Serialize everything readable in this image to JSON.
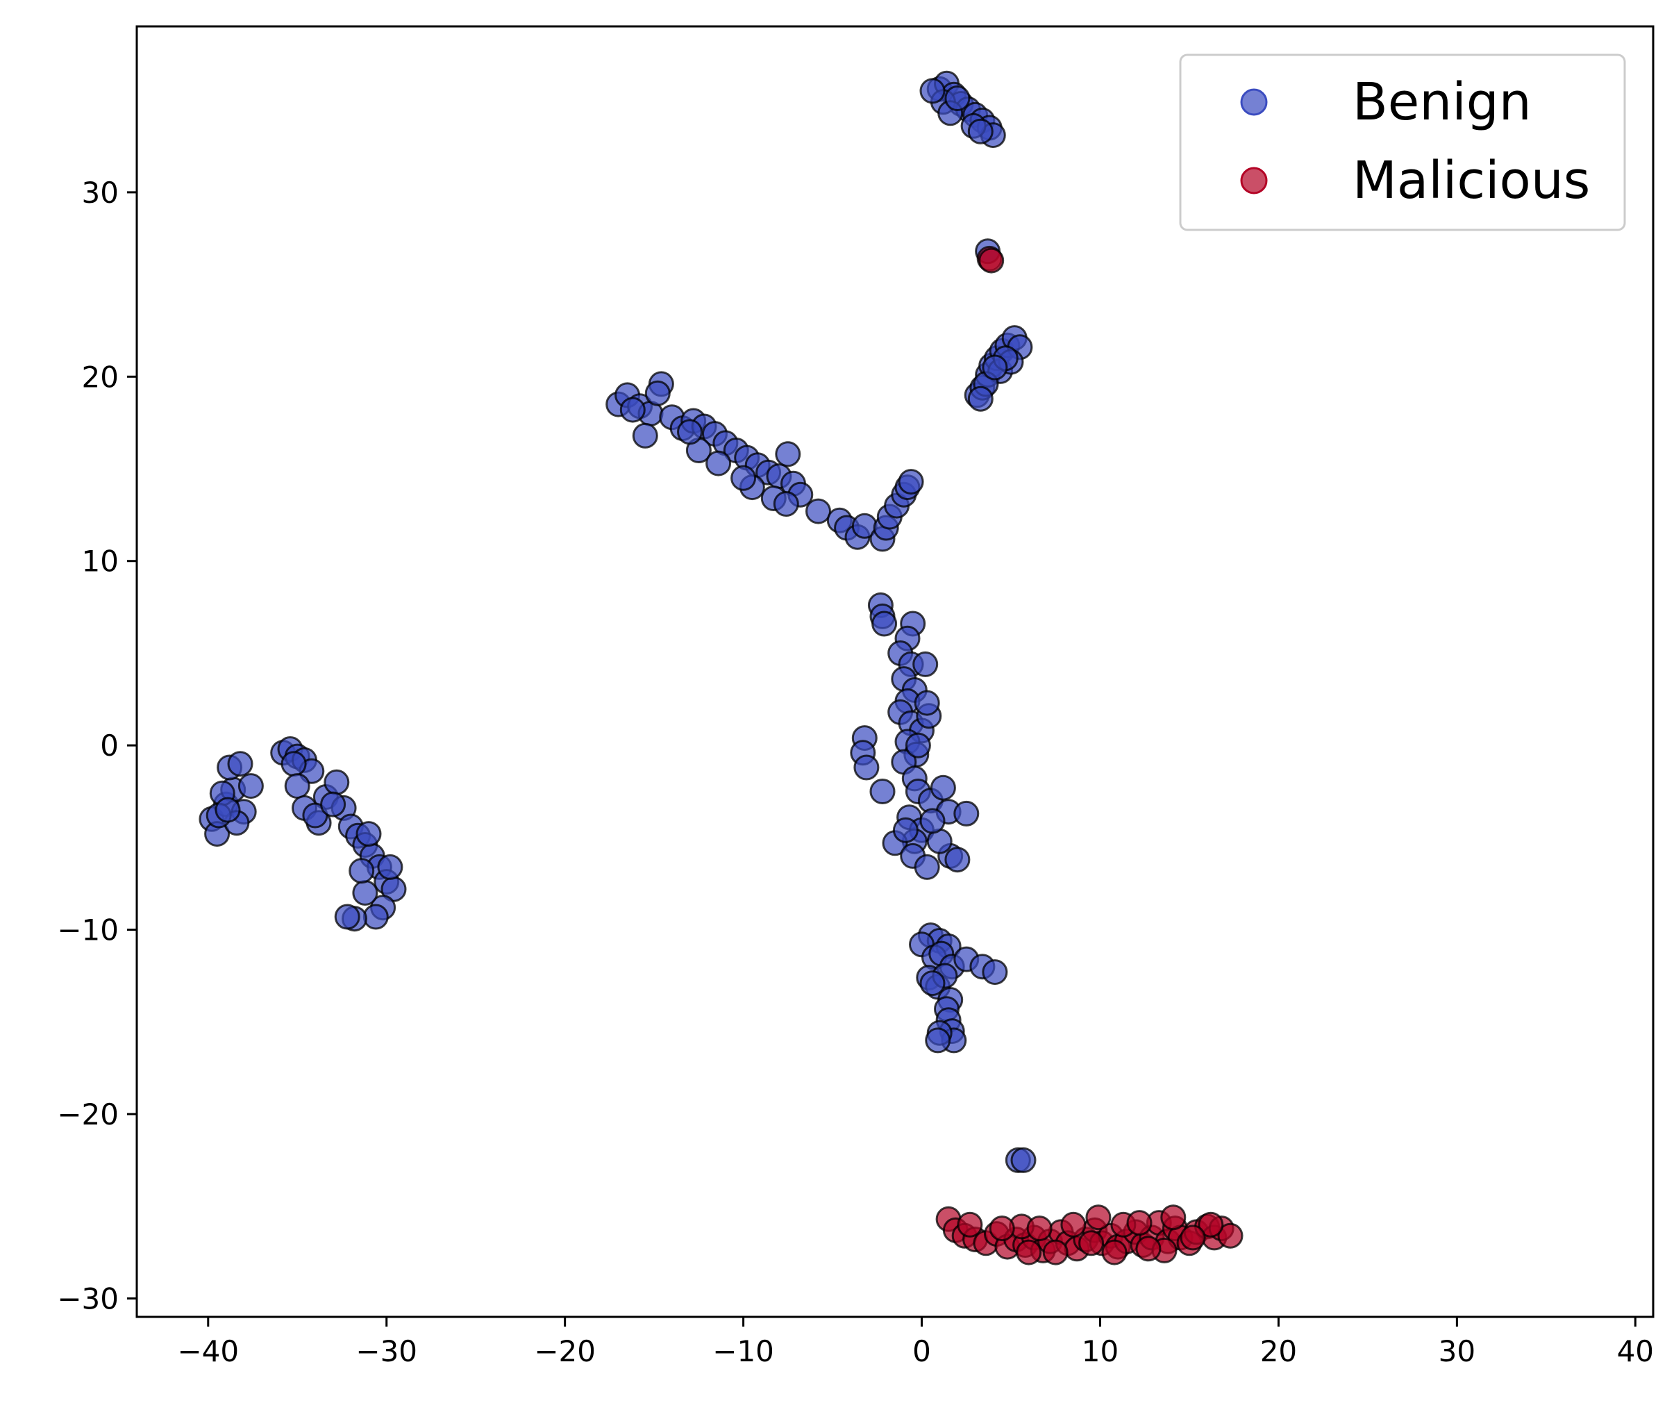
{
  "chart_data": {
    "type": "scatter",
    "title": "",
    "xlabel": "",
    "ylabel": "",
    "xlim": [
      -44,
      41
    ],
    "ylim": [
      -31,
      39
    ],
    "xticks": [
      -40,
      -30,
      -20,
      -10,
      0,
      10,
      20,
      30,
      40
    ],
    "yticks": [
      -30,
      -20,
      -10,
      0,
      10,
      20,
      30
    ],
    "xtick_labels": [
      "−40",
      "−30",
      "−20",
      "−10",
      "0",
      "10",
      "20",
      "30",
      "40"
    ],
    "ytick_labels": [
      "−30",
      "−20",
      "−10",
      "0",
      "10",
      "20",
      "30"
    ],
    "grid": false,
    "legend_position": "top-right",
    "series": [
      {
        "name": "Benign",
        "color": "#3b4cc0",
        "points": [
          [
            1.0,
            35.6
          ],
          [
            1.4,
            35.9
          ],
          [
            1.8,
            35.3
          ],
          [
            2.2,
            34.8
          ],
          [
            2.6,
            34.5
          ],
          [
            3.0,
            34.2
          ],
          [
            3.4,
            33.9
          ],
          [
            3.8,
            33.5
          ],
          [
            4.0,
            33.1
          ],
          [
            1.2,
            34.9
          ],
          [
            1.6,
            34.3
          ],
          [
            2.9,
            33.6
          ],
          [
            3.3,
            33.3
          ],
          [
            0.6,
            35.5
          ],
          [
            2.0,
            35.1
          ],
          [
            3.7,
            26.8
          ],
          [
            3.1,
            19.0
          ],
          [
            3.4,
            19.4
          ],
          [
            3.7,
            20.1
          ],
          [
            3.9,
            20.6
          ],
          [
            4.2,
            21.0
          ],
          [
            4.5,
            21.4
          ],
          [
            4.8,
            21.7
          ],
          [
            5.2,
            22.1
          ],
          [
            5.5,
            21.6
          ],
          [
            4.4,
            20.3
          ],
          [
            5.0,
            20.8
          ],
          [
            3.6,
            19.6
          ],
          [
            4.7,
            21.0
          ],
          [
            3.3,
            18.8
          ],
          [
            4.1,
            20.5
          ],
          [
            -17.0,
            18.5
          ],
          [
            -16.5,
            19.0
          ],
          [
            -15.8,
            18.4
          ],
          [
            -15.2,
            18.0
          ],
          [
            -14.6,
            19.6
          ],
          [
            -14.8,
            19.1
          ],
          [
            -14.0,
            17.8
          ],
          [
            -13.4,
            17.2
          ],
          [
            -12.8,
            17.6
          ],
          [
            -12.2,
            17.3
          ],
          [
            -11.6,
            16.9
          ],
          [
            -11.0,
            16.4
          ],
          [
            -10.4,
            16.0
          ],
          [
            -9.8,
            15.6
          ],
          [
            -9.2,
            15.2
          ],
          [
            -8.6,
            14.8
          ],
          [
            -8.0,
            14.6
          ],
          [
            -7.5,
            15.8
          ],
          [
            -7.2,
            14.2
          ],
          [
            -6.8,
            13.6
          ],
          [
            -9.5,
            14.0
          ],
          [
            -10.0,
            14.5
          ],
          [
            -12.5,
            16.0
          ],
          [
            -13.0,
            17.0
          ],
          [
            -15.5,
            16.8
          ],
          [
            -16.2,
            18.2
          ],
          [
            -11.4,
            15.3
          ],
          [
            -8.3,
            13.4
          ],
          [
            -7.6,
            13.1
          ],
          [
            -5.8,
            12.7
          ],
          [
            -4.6,
            12.2
          ],
          [
            -4.2,
            11.8
          ],
          [
            -3.6,
            11.3
          ],
          [
            -3.2,
            11.9
          ],
          [
            -2.2,
            11.2
          ],
          [
            -2.0,
            11.8
          ],
          [
            -1.8,
            12.4
          ],
          [
            -1.4,
            13.0
          ],
          [
            -1.0,
            13.6
          ],
          [
            -0.8,
            14.0
          ],
          [
            -0.6,
            14.3
          ],
          [
            -2.3,
            7.6
          ],
          [
            -2.2,
            7.0
          ],
          [
            -2.1,
            6.6
          ],
          [
            -0.5,
            6.6
          ],
          [
            -0.8,
            5.8
          ],
          [
            -1.2,
            5.0
          ],
          [
            -0.6,
            4.4
          ],
          [
            -1.0,
            3.6
          ],
          [
            -0.4,
            3.0
          ],
          [
            0.2,
            4.4
          ],
          [
            -0.8,
            2.4
          ],
          [
            -1.2,
            1.8
          ],
          [
            -0.6,
            1.2
          ],
          [
            0.0,
            0.8
          ],
          [
            0.4,
            1.6
          ],
          [
            -0.8,
            0.2
          ],
          [
            -0.3,
            -0.5
          ],
          [
            -1.0,
            -0.9
          ],
          [
            -0.4,
            -1.8
          ],
          [
            -3.2,
            0.4
          ],
          [
            -3.3,
            -0.4
          ],
          [
            -3.1,
            -1.2
          ],
          [
            -2.2,
            -2.5
          ],
          [
            -0.2,
            -2.5
          ],
          [
            0.5,
            -3.0
          ],
          [
            1.2,
            -2.3
          ],
          [
            1.5,
            -3.6
          ],
          [
            2.5,
            -3.7
          ],
          [
            -0.7,
            -3.9
          ],
          [
            0.0,
            -4.6
          ],
          [
            -0.4,
            -5.2
          ],
          [
            -1.5,
            -5.3
          ],
          [
            -0.5,
            -6.0
          ],
          [
            0.3,
            -6.6
          ],
          [
            1.6,
            -6.0
          ],
          [
            2.0,
            -6.2
          ],
          [
            1.0,
            -5.2
          ],
          [
            -0.9,
            -4.6
          ],
          [
            0.6,
            -4.1
          ],
          [
            0.3,
            2.3
          ],
          [
            -0.2,
            0.0
          ],
          [
            0.5,
            -10.3
          ],
          [
            1.0,
            -10.6
          ],
          [
            1.5,
            -10.9
          ],
          [
            0.0,
            -10.8
          ],
          [
            0.7,
            -11.5
          ],
          [
            1.1,
            -11.3
          ],
          [
            1.7,
            -12.0
          ],
          [
            0.4,
            -12.6
          ],
          [
            0.9,
            -13.1
          ],
          [
            1.3,
            -12.5
          ],
          [
            1.6,
            -13.8
          ],
          [
            1.4,
            -14.3
          ],
          [
            1.5,
            -14.9
          ],
          [
            1.7,
            -15.5
          ],
          [
            1.8,
            -16.0
          ],
          [
            1.0,
            -15.6
          ],
          [
            0.9,
            -16.0
          ],
          [
            2.5,
            -11.6
          ],
          [
            3.4,
            -12.0
          ],
          [
            4.1,
            -12.3
          ],
          [
            0.6,
            -12.9
          ],
          [
            5.4,
            -22.5
          ],
          [
            5.7,
            -22.5
          ],
          [
            -39.8,
            -4.0
          ],
          [
            -39.5,
            -4.8
          ],
          [
            -39.0,
            -3.2
          ],
          [
            -38.6,
            -2.4
          ],
          [
            -38.8,
            -1.2
          ],
          [
            -38.2,
            -1.0
          ],
          [
            -38.0,
            -3.6
          ],
          [
            -37.6,
            -2.2
          ],
          [
            -39.2,
            -2.6
          ],
          [
            -38.4,
            -4.2
          ],
          [
            -39.4,
            -3.8
          ],
          [
            -38.9,
            -3.5
          ],
          [
            -35.8,
            -0.4
          ],
          [
            -35.4,
            -0.2
          ],
          [
            -35.0,
            -0.6
          ],
          [
            -34.6,
            -0.8
          ],
          [
            -34.2,
            -1.4
          ],
          [
            -35.2,
            -1.0
          ],
          [
            -35.0,
            -2.2
          ],
          [
            -34.6,
            -3.4
          ],
          [
            -33.8,
            -4.2
          ],
          [
            -33.4,
            -2.8
          ],
          [
            -32.8,
            -2.0
          ],
          [
            -32.4,
            -3.4
          ],
          [
            -32.0,
            -4.4
          ],
          [
            -31.6,
            -4.9
          ],
          [
            -31.2,
            -5.4
          ],
          [
            -30.8,
            -6.0
          ],
          [
            -30.4,
            -6.6
          ],
          [
            -30.0,
            -7.4
          ],
          [
            -29.6,
            -7.8
          ],
          [
            -30.2,
            -8.8
          ],
          [
            -30.6,
            -9.3
          ],
          [
            -31.2,
            -8.0
          ],
          [
            -31.4,
            -6.8
          ],
          [
            -31.8,
            -9.4
          ],
          [
            -32.2,
            -9.3
          ],
          [
            -34.0,
            -3.8
          ],
          [
            -33.0,
            -3.2
          ],
          [
            -31.0,
            -4.8
          ],
          [
            -29.8,
            -6.6
          ]
        ]
      },
      {
        "name": "Malicious",
        "color": "#b40426",
        "points": [
          [
            3.8,
            26.4
          ],
          [
            3.9,
            26.3
          ],
          [
            1.5,
            -25.7
          ],
          [
            1.9,
            -26.3
          ],
          [
            2.4,
            -26.6
          ],
          [
            3.0,
            -26.8
          ],
          [
            3.6,
            -27.0
          ],
          [
            4.2,
            -26.5
          ],
          [
            4.8,
            -27.2
          ],
          [
            5.3,
            -26.8
          ],
          [
            5.8,
            -27.1
          ],
          [
            6.3,
            -26.7
          ],
          [
            6.8,
            -27.4
          ],
          [
            7.2,
            -26.9
          ],
          [
            7.8,
            -26.4
          ],
          [
            8.2,
            -27.0
          ],
          [
            8.7,
            -27.3
          ],
          [
            9.2,
            -26.8
          ],
          [
            9.7,
            -26.3
          ],
          [
            10.1,
            -27.0
          ],
          [
            10.6,
            -26.6
          ],
          [
            11.0,
            -27.2
          ],
          [
            11.5,
            -26.9
          ],
          [
            12.0,
            -26.4
          ],
          [
            12.4,
            -27.1
          ],
          [
            12.9,
            -26.7
          ],
          [
            13.3,
            -25.9
          ],
          [
            13.8,
            -26.9
          ],
          [
            14.2,
            -26.2
          ],
          [
            14.5,
            -26.7
          ],
          [
            15.0,
            -27.0
          ],
          [
            15.4,
            -26.4
          ],
          [
            16.0,
            -26.1
          ],
          [
            16.4,
            -26.7
          ],
          [
            16.8,
            -26.2
          ],
          [
            17.3,
            -26.6
          ],
          [
            5.6,
            -26.1
          ],
          [
            6.6,
            -26.2
          ],
          [
            8.5,
            -26.0
          ],
          [
            9.9,
            -25.6
          ],
          [
            11.3,
            -26.0
          ],
          [
            12.2,
            -25.9
          ],
          [
            14.1,
            -25.6
          ],
          [
            16.2,
            -26.0
          ],
          [
            4.5,
            -26.2
          ],
          [
            7.5,
            -27.5
          ],
          [
            10.8,
            -27.5
          ],
          [
            13.6,
            -27.4
          ],
          [
            2.7,
            -26.0
          ],
          [
            6.0,
            -27.5
          ],
          [
            9.5,
            -27.0
          ],
          [
            12.7,
            -27.3
          ],
          [
            15.2,
            -26.7
          ]
        ]
      }
    ]
  },
  "legend": {
    "items": [
      {
        "label": "Benign",
        "color": "#3b4cc0"
      },
      {
        "label": "Malicious",
        "color": "#b40426"
      }
    ]
  }
}
